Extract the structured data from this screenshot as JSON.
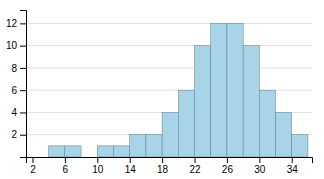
{
  "chart_data": {
    "type": "histogram",
    "bins": [
      2,
      4,
      6,
      8,
      10,
      12,
      14,
      16,
      18,
      20,
      22,
      24,
      26,
      28,
      30,
      32,
      34,
      36
    ],
    "values": [
      0,
      1,
      1,
      0,
      1,
      1,
      2,
      2,
      4,
      6,
      10,
      12,
      12,
      10,
      6,
      4,
      2
    ],
    "color": "#a8d4e8",
    "xlim": [
      1.2,
      36.5
    ],
    "xticks": [
      2,
      6,
      10,
      14,
      18,
      22,
      26,
      30,
      34
    ],
    "ylim": [
      0,
      13.2
    ],
    "yticks": [
      2,
      4,
      6,
      8,
      10,
      12
    ],
    "grid": true
  }
}
